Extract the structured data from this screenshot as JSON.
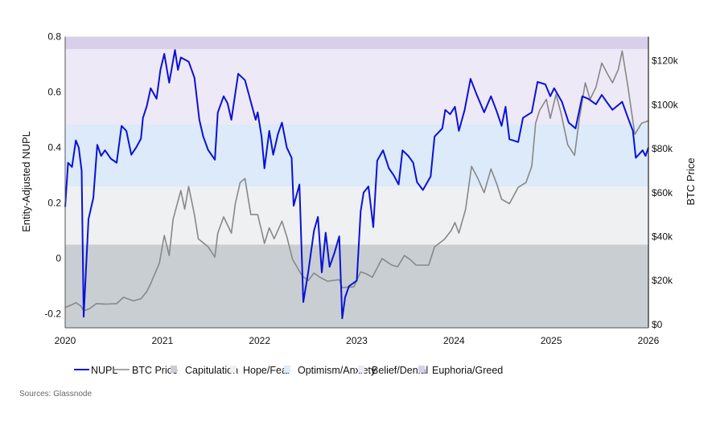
{
  "chart_data": {
    "type": "line",
    "title": "",
    "xlabel": "",
    "ylabel": "Entity-Adjusted NUPL",
    "y2label": "BTC Price",
    "xlim": [
      2020,
      2026
    ],
    "ylim": [
      -0.25,
      0.8
    ],
    "y2lim": [
      -1.5,
      131
    ],
    "x_ticks": [
      "2020",
      "2021",
      "2022",
      "2023",
      "2024",
      "2025",
      "2026"
    ],
    "y_ticks": [
      {
        "v": 0.8,
        "label": "0.8"
      },
      {
        "v": 0.6,
        "label": "0.6"
      },
      {
        "v": 0.4,
        "label": "0.4"
      },
      {
        "v": 0.2,
        "label": "0.2"
      },
      {
        "v": 0,
        "label": "0"
      },
      {
        "v": -0.2,
        "label": "-0.2"
      }
    ],
    "y2_ticks": [
      {
        "v": 120,
        "label": "$120k"
      },
      {
        "v": 100,
        "label": "$100k"
      },
      {
        "v": 80,
        "label": "$80k"
      },
      {
        "v": 60,
        "label": "$60k"
      },
      {
        "v": 40,
        "label": "$40k"
      },
      {
        "v": 20,
        "label": "$20k"
      },
      {
        "v": 0,
        "label": "$0"
      }
    ],
    "grid": false,
    "legend_position": "bottom",
    "bands": [
      {
        "name": "Capitulation",
        "from": -0.25,
        "to": 0.05,
        "color": "#c9ced3"
      },
      {
        "name": "Hope/Fear",
        "from": 0.05,
        "to": 0.26,
        "color": "#eef0f2"
      },
      {
        "name": "Optimism/Anxiety",
        "from": 0.26,
        "to": 0.485,
        "color": "#dceaf9"
      },
      {
        "name": "Belief/Denial",
        "from": 0.485,
        "to": 0.755,
        "color": "#eee9f6"
      },
      {
        "name": "Euphoria/Greed",
        "from": 0.755,
        "to": 0.8,
        "color": "#d8d0ea"
      }
    ],
    "series": [
      {
        "name": "NUPL",
        "axis": "left",
        "color": "#0a12d6",
        "points": [
          [
            2020.0,
            0.186
          ],
          [
            2020.03,
            0.345
          ],
          [
            2020.07,
            0.33
          ],
          [
            2020.11,
            0.426
          ],
          [
            2020.14,
            0.4
          ],
          [
            2020.17,
            0.316
          ],
          [
            2020.19,
            -0.21
          ],
          [
            2020.24,
            0.142
          ],
          [
            2020.29,
            0.218
          ],
          [
            2020.33,
            0.41
          ],
          [
            2020.37,
            0.37
          ],
          [
            2020.41,
            0.39
          ],
          [
            2020.47,
            0.36
          ],
          [
            2020.53,
            0.345
          ],
          [
            2020.58,
            0.478
          ],
          [
            2020.63,
            0.46
          ],
          [
            2020.68,
            0.374
          ],
          [
            2020.73,
            0.4
          ],
          [
            2020.78,
            0.432
          ],
          [
            2020.8,
            0.507
          ],
          [
            2020.84,
            0.55
          ],
          [
            2020.88,
            0.614
          ],
          [
            2020.94,
            0.576
          ],
          [
            2020.98,
            0.68
          ],
          [
            2021.02,
            0.738
          ],
          [
            2021.07,
            0.634
          ],
          [
            2021.13,
            0.752
          ],
          [
            2021.16,
            0.68
          ],
          [
            2021.19,
            0.725
          ],
          [
            2021.27,
            0.71
          ],
          [
            2021.33,
            0.652
          ],
          [
            2021.38,
            0.5
          ],
          [
            2021.42,
            0.44
          ],
          [
            2021.47,
            0.392
          ],
          [
            2021.54,
            0.356
          ],
          [
            2021.57,
            0.526
          ],
          [
            2021.63,
            0.585
          ],
          [
            2021.67,
            0.56
          ],
          [
            2021.71,
            0.5
          ],
          [
            2021.78,
            0.666
          ],
          [
            2021.85,
            0.643
          ],
          [
            2021.91,
            0.565
          ],
          [
            2021.96,
            0.5
          ],
          [
            2021.98,
            0.527
          ],
          [
            2022.02,
            0.44
          ],
          [
            2022.05,
            0.325
          ],
          [
            2022.1,
            0.46
          ],
          [
            2022.14,
            0.374
          ],
          [
            2022.19,
            0.45
          ],
          [
            2022.23,
            0.49
          ],
          [
            2022.28,
            0.4
          ],
          [
            2022.33,
            0.363
          ],
          [
            2022.35,
            0.19
          ],
          [
            2022.41,
            0.267
          ],
          [
            2022.45,
            -0.157
          ],
          [
            2022.5,
            -0.05
          ],
          [
            2022.56,
            0.1
          ],
          [
            2022.6,
            0.15
          ],
          [
            2022.64,
            -0.05
          ],
          [
            2022.68,
            0.093
          ],
          [
            2022.72,
            -0.03
          ],
          [
            2022.77,
            0.02
          ],
          [
            2022.82,
            0.08
          ],
          [
            2022.85,
            -0.216
          ],
          [
            2022.88,
            -0.14
          ],
          [
            2022.92,
            -0.1
          ],
          [
            2023.0,
            -0.08
          ],
          [
            2023.04,
            0.17
          ],
          [
            2023.07,
            0.238
          ],
          [
            2023.12,
            0.26
          ],
          [
            2023.17,
            0.113
          ],
          [
            2023.21,
            0.353
          ],
          [
            2023.27,
            0.39
          ],
          [
            2023.33,
            0.325
          ],
          [
            2023.38,
            0.3
          ],
          [
            2023.43,
            0.267
          ],
          [
            2023.47,
            0.39
          ],
          [
            2023.53,
            0.37
          ],
          [
            2023.58,
            0.345
          ],
          [
            2023.62,
            0.275
          ],
          [
            2023.68,
            0.247
          ],
          [
            2023.76,
            0.296
          ],
          [
            2023.8,
            0.44
          ],
          [
            2023.88,
            0.469
          ],
          [
            2023.91,
            0.536
          ],
          [
            2023.96,
            0.52
          ],
          [
            2024.01,
            0.547
          ],
          [
            2024.05,
            0.46
          ],
          [
            2024.11,
            0.536
          ],
          [
            2024.17,
            0.648
          ],
          [
            2024.23,
            0.594
          ],
          [
            2024.31,
            0.527
          ],
          [
            2024.38,
            0.585
          ],
          [
            2024.44,
            0.53
          ],
          [
            2024.49,
            0.478
          ],
          [
            2024.53,
            0.547
          ],
          [
            2024.57,
            0.43
          ],
          [
            2024.66,
            0.42
          ],
          [
            2024.71,
            0.507
          ],
          [
            2024.8,
            0.527
          ],
          [
            2024.86,
            0.637
          ],
          [
            2024.94,
            0.628
          ],
          [
            2024.99,
            0.585
          ],
          [
            2025.03,
            0.614
          ],
          [
            2025.11,
            0.565
          ],
          [
            2025.18,
            0.49
          ],
          [
            2025.25,
            0.469
          ],
          [
            2025.32,
            0.585
          ],
          [
            2025.38,
            0.576
          ],
          [
            2025.46,
            0.556
          ],
          [
            2025.52,
            0.59
          ],
          [
            2025.58,
            0.56
          ],
          [
            2025.63,
            0.536
          ],
          [
            2025.73,
            0.565
          ],
          [
            2025.79,
            0.507
          ],
          [
            2025.84,
            0.46
          ],
          [
            2025.87,
            0.363
          ],
          [
            2025.94,
            0.39
          ],
          [
            2025.97,
            0.37
          ],
          [
            2026.0,
            0.4
          ]
        ]
      },
      {
        "name": "BTC Price",
        "axis": "right",
        "unit": "k USD",
        "color": "#888888",
        "points": [
          [
            2020.0,
            7.7
          ],
          [
            2020.06,
            8.8
          ],
          [
            2020.11,
            9.9
          ],
          [
            2020.16,
            8.5
          ],
          [
            2020.19,
            6.2
          ],
          [
            2020.25,
            7.2
          ],
          [
            2020.32,
            9.5
          ],
          [
            2020.42,
            9.3
          ],
          [
            2020.53,
            9.5
          ],
          [
            2020.6,
            12.4
          ],
          [
            2020.7,
            10.8
          ],
          [
            2020.78,
            11.7
          ],
          [
            2020.84,
            15.0
          ],
          [
            2020.88,
            18.6
          ],
          [
            2020.97,
            28.0
          ],
          [
            2021.02,
            40.5
          ],
          [
            2021.07,
            31.4
          ],
          [
            2021.11,
            47.8
          ],
          [
            2021.19,
            61.0
          ],
          [
            2021.23,
            52.5
          ],
          [
            2021.27,
            62.8
          ],
          [
            2021.33,
            50.0
          ],
          [
            2021.37,
            39.0
          ],
          [
            2021.47,
            35.4
          ],
          [
            2021.54,
            30.7
          ],
          [
            2021.57,
            41.6
          ],
          [
            2021.63,
            49.0
          ],
          [
            2021.71,
            41.6
          ],
          [
            2021.75,
            55.0
          ],
          [
            2021.8,
            64.6
          ],
          [
            2021.85,
            66.4
          ],
          [
            2021.91,
            50.0
          ],
          [
            2021.98,
            50.0
          ],
          [
            2022.02,
            42.7
          ],
          [
            2022.05,
            36.9
          ],
          [
            2022.1,
            44.0
          ],
          [
            2022.15,
            39.0
          ],
          [
            2022.23,
            47.0
          ],
          [
            2022.28,
            40.0
          ],
          [
            2022.34,
            29.6
          ],
          [
            2022.44,
            22.0
          ],
          [
            2022.5,
            20.0
          ],
          [
            2022.56,
            23.4
          ],
          [
            2022.62,
            21.5
          ],
          [
            2022.7,
            19.7
          ],
          [
            2022.82,
            20.4
          ],
          [
            2022.85,
            16.8
          ],
          [
            2022.97,
            17.2
          ],
          [
            2023.04,
            24.0
          ],
          [
            2023.1,
            23.0
          ],
          [
            2023.16,
            21.5
          ],
          [
            2023.26,
            30.0
          ],
          [
            2023.36,
            27.0
          ],
          [
            2023.42,
            26.3
          ],
          [
            2023.49,
            31.4
          ],
          [
            2023.55,
            29.5
          ],
          [
            2023.61,
            27.0
          ],
          [
            2023.74,
            27.0
          ],
          [
            2023.8,
            35.4
          ],
          [
            2023.9,
            38.7
          ],
          [
            2023.97,
            42.7
          ],
          [
            2024.01,
            46.4
          ],
          [
            2024.05,
            41.6
          ],
          [
            2024.12,
            52.5
          ],
          [
            2024.18,
            72.0
          ],
          [
            2024.24,
            67.0
          ],
          [
            2024.31,
            60.0
          ],
          [
            2024.38,
            70.8
          ],
          [
            2024.44,
            64.0
          ],
          [
            2024.49,
            57.0
          ],
          [
            2024.57,
            55.0
          ],
          [
            2024.66,
            62.4
          ],
          [
            2024.74,
            64.6
          ],
          [
            2024.8,
            72.0
          ],
          [
            2024.84,
            91.6
          ],
          [
            2024.88,
            97.4
          ],
          [
            2024.95,
            102.5
          ],
          [
            2024.99,
            93.8
          ],
          [
            2025.05,
            104.7
          ],
          [
            2025.1,
            96.4
          ],
          [
            2025.17,
            81.8
          ],
          [
            2025.24,
            77.0
          ],
          [
            2025.29,
            93.8
          ],
          [
            2025.35,
            110.0
          ],
          [
            2025.4,
            102.5
          ],
          [
            2025.46,
            108.0
          ],
          [
            2025.52,
            119.0
          ],
          [
            2025.58,
            114.0
          ],
          [
            2025.63,
            110.0
          ],
          [
            2025.69,
            116.0
          ],
          [
            2025.73,
            124.5
          ],
          [
            2025.79,
            108.0
          ],
          [
            2025.86,
            86.5
          ],
          [
            2025.93,
            91.6
          ],
          [
            2026.0,
            92.7
          ]
        ]
      }
    ]
  },
  "legend": {
    "items": [
      {
        "label": "NUPL",
        "kind": "line",
        "color": "#0a12d6"
      },
      {
        "label": "BTC Price",
        "kind": "line",
        "color": "#888888"
      },
      {
        "label": "Capitulation",
        "kind": "box",
        "color": "#c9ced3"
      },
      {
        "label": "Hope/Fear",
        "kind": "box",
        "color": "#eef0f2"
      },
      {
        "label": "Optimism/Anxiety",
        "kind": "box",
        "color": "#dceaf9"
      },
      {
        "label": "Belief/Denial",
        "kind": "box",
        "color": "#eee9f6"
      },
      {
        "label": "Euphoria/Greed",
        "kind": "box",
        "color": "#d8d0ea"
      }
    ]
  },
  "source": "Sources: Glassnode"
}
